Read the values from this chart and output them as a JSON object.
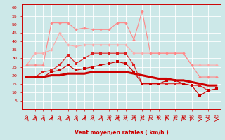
{
  "x": [
    0,
    1,
    2,
    3,
    4,
    5,
    6,
    7,
    8,
    9,
    10,
    11,
    12,
    13,
    14,
    15,
    16,
    17,
    18,
    19,
    20,
    21,
    22,
    23
  ],
  "line_max_gust": [
    26,
    26,
    26,
    51,
    51,
    51,
    47,
    48,
    47,
    47,
    47,
    51,
    51,
    41,
    58,
    33,
    33,
    33,
    33,
    33,
    26,
    19,
    19,
    19
  ],
  "line_avg_gust": [
    26,
    33,
    33,
    35,
    45,
    38,
    37,
    38,
    38,
    38,
    38,
    38,
    38,
    33,
    33,
    33,
    33,
    33,
    33,
    33,
    26,
    26,
    26,
    26
  ],
  "line_max_wind": [
    19,
    19,
    22,
    23,
    26,
    32,
    27,
    30,
    33,
    33,
    33,
    33,
    33,
    26,
    15,
    15,
    15,
    15,
    15,
    15,
    14,
    14,
    11,
    12
  ],
  "line_avg_wind": [
    19,
    19,
    19,
    22,
    23,
    26,
    23,
    24,
    25,
    26,
    27,
    28,
    27,
    22,
    15,
    15,
    15,
    17,
    17,
    15,
    14,
    8,
    11,
    12
  ],
  "line_trend": [
    19,
    19,
    19,
    20,
    20,
    21,
    21,
    21,
    22,
    22,
    22,
    22,
    22,
    21,
    20,
    19,
    18,
    18,
    17,
    17,
    16,
    15,
    14,
    14
  ],
  "background": "#cce8e8",
  "grid_color": "#ffffff",
  "color_light1": "#ffaaaa",
  "color_light2": "#ffbbbb",
  "color_dark": "#dd0000",
  "xlabel": "Vent moyen/en rafales ( km/h )",
  "ylim": [
    0,
    62
  ],
  "xlim": [
    -0.5,
    23.5
  ],
  "yticks": [
    5,
    10,
    15,
    20,
    25,
    30,
    35,
    40,
    45,
    50,
    55,
    60
  ],
  "xticks": [
    0,
    1,
    2,
    3,
    4,
    5,
    6,
    7,
    8,
    9,
    10,
    11,
    12,
    13,
    14,
    15,
    16,
    17,
    18,
    19,
    20,
    21,
    22,
    23
  ],
  "arrow_angles": [
    45,
    45,
    45,
    45,
    45,
    45,
    45,
    45,
    45,
    45,
    45,
    45,
    45,
    45,
    135,
    135,
    135,
    135,
    135,
    135,
    135,
    0,
    0,
    0
  ]
}
